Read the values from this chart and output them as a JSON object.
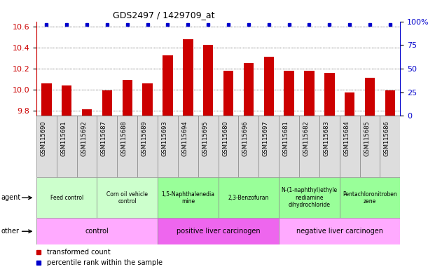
{
  "title": "GDS2497 / 1429709_at",
  "samples": [
    "GSM115690",
    "GSM115691",
    "GSM115692",
    "GSM115687",
    "GSM115688",
    "GSM115689",
    "GSM115693",
    "GSM115694",
    "GSM115695",
    "GSM115680",
    "GSM115696",
    "GSM115697",
    "GSM115681",
    "GSM115682",
    "GSM115683",
    "GSM115684",
    "GSM115685",
    "GSM115686"
  ],
  "bar_values": [
    10.06,
    10.04,
    9.81,
    9.99,
    10.09,
    10.06,
    10.33,
    10.48,
    10.43,
    10.18,
    10.25,
    10.31,
    10.18,
    10.18,
    10.16,
    9.97,
    10.11,
    9.99
  ],
  "ylim_left": [
    9.75,
    10.65
  ],
  "ylim_right": [
    0,
    100
  ],
  "yticks_left": [
    9.8,
    10.0,
    10.2,
    10.4,
    10.6
  ],
  "yticks_right": [
    0,
    25,
    50,
    75,
    100
  ],
  "bar_color": "#cc0000",
  "percentile_color": "#0000cc",
  "agent_groups": [
    {
      "label": "Feed control",
      "start": 0,
      "end": 3,
      "color": "#ccffcc"
    },
    {
      "label": "Corn oil vehicle\ncontrol",
      "start": 3,
      "end": 6,
      "color": "#ccffcc"
    },
    {
      "label": "1,5-Naphthalenedia\nmine",
      "start": 6,
      "end": 9,
      "color": "#99ff99"
    },
    {
      "label": "2,3-Benzofuran",
      "start": 9,
      "end": 12,
      "color": "#99ff99"
    },
    {
      "label": "N-(1-naphthyl)ethyle\nnediamine\ndihydrochloride",
      "start": 12,
      "end": 15,
      "color": "#99ff99"
    },
    {
      "label": "Pentachloronitroben\nzene",
      "start": 15,
      "end": 18,
      "color": "#99ff99"
    }
  ],
  "other_groups": [
    {
      "label": "control",
      "start": 0,
      "end": 6,
      "color": "#ffaaff"
    },
    {
      "label": "positive liver carcinogen",
      "start": 6,
      "end": 12,
      "color": "#ee66ee"
    },
    {
      "label": "negative liver carcinogen",
      "start": 12,
      "end": 18,
      "color": "#ffaaff"
    }
  ],
  "legend_items": [
    {
      "color": "#cc0000",
      "label": "transformed count"
    },
    {
      "color": "#0000cc",
      "label": "percentile rank within the sample"
    }
  ],
  "xtick_bg": "#dddddd",
  "label_font": 7,
  "bar_width": 0.5
}
